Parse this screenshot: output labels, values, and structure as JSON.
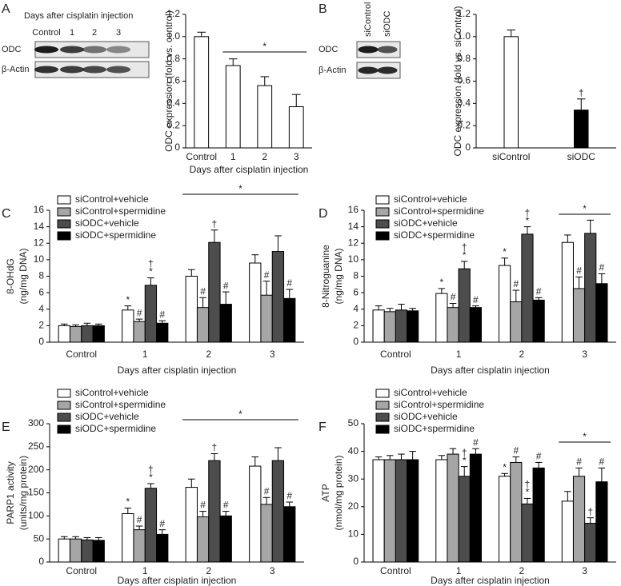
{
  "chart_data": [
    {
      "type": "bar",
      "panel": "A",
      "blot": {
        "title": "Days after cisplatin injection",
        "lanes": [
          "Control",
          "1",
          "2",
          "3"
        ],
        "rows": [
          "ODC",
          "β-Actin"
        ]
      },
      "categories": [
        "Control",
        "1",
        "2",
        "3"
      ],
      "values": [
        1.0,
        0.74,
        0.56,
        0.37
      ],
      "errors": [
        0.04,
        0.06,
        0.08,
        0.11
      ],
      "colors": [
        "#ffffff",
        "#ffffff",
        "#ffffff",
        "#ffffff"
      ],
      "ylabel": "ODC expression (fold vs. control)",
      "xlabel": "Days after cisplatin injection",
      "ylim": [
        0,
        1.2
      ],
      "yticks": [
        0,
        0.2,
        0.4,
        0.6,
        0.8,
        {
          "value": 1,
          "label": "1.0"
        },
        1.2
      ],
      "bracket": {
        "from": 1,
        "to": 3,
        "label": "*"
      }
    },
    {
      "type": "bar",
      "panel": "B",
      "blot": {
        "lanes": [
          "siControl",
          "siODC"
        ],
        "rows": [
          "ODC",
          "β-Actin"
        ]
      },
      "categories": [
        "siControl",
        "siODC"
      ],
      "values": [
        1.0,
        0.34
      ],
      "errors": [
        0.06,
        0.1
      ],
      "colors": [
        "#ffffff",
        "#000000"
      ],
      "markers": [
        null,
        [
          "†"
        ]
      ],
      "ylabel": "ODC expression (fold vs. siControl)",
      "ylim": [
        0,
        1.2
      ],
      "yticks": [
        0,
        0.2,
        0.4,
        0.6,
        0.8,
        {
          "value": 1,
          "label": "1.0"
        },
        1.2
      ]
    },
    {
      "type": "grouped-bar",
      "panel": "C",
      "categories": [
        "Control",
        "1",
        "2",
        "3"
      ],
      "ylabel": [
        "8-OHdG",
        "(ng/mg DNA)"
      ],
      "xlabel": "Days after cisplatin injection",
      "ylim": [
        0,
        16
      ],
      "yticks": [
        0,
        2,
        4,
        6,
        8,
        10,
        12,
        14,
        16
      ],
      "bracket": {
        "from": 2,
        "to": 3,
        "label": "*"
      },
      "series": [
        {
          "name": "siControl+vehicle",
          "color": "#ffffff",
          "values": [
            2.0,
            3.9,
            8.0,
            9.6
          ],
          "errors": [
            0.2,
            0.5,
            0.8,
            1.0
          ],
          "markers": [
            null,
            [
              "*"
            ],
            null,
            null
          ]
        },
        {
          "name": "siControl+spermidine",
          "color": "#a6a6a6",
          "values": [
            1.9,
            2.5,
            4.2,
            5.7
          ],
          "errors": [
            0.2,
            0.3,
            1.2,
            1.7
          ],
          "markers": [
            null,
            [
              "#"
            ],
            [
              "#"
            ],
            [
              "#"
            ]
          ]
        },
        {
          "name": "siODC+vehicle",
          "color": "#4d4d4d",
          "values": [
            2.0,
            6.9,
            12.1,
            11.0
          ],
          "errors": [
            0.3,
            0.9,
            1.5,
            1.9
          ],
          "markers": [
            null,
            [
              "†",
              "*"
            ],
            [
              "†"
            ],
            null
          ]
        },
        {
          "name": "siODC+spermidine",
          "color": "#000000",
          "values": [
            2.0,
            2.3,
            4.6,
            5.3
          ],
          "errors": [
            0.2,
            0.3,
            1.5,
            1.1
          ],
          "markers": [
            null,
            [
              "#"
            ],
            [
              "#"
            ],
            [
              "#"
            ]
          ]
        }
      ]
    },
    {
      "type": "grouped-bar",
      "panel": "D",
      "categories": [
        "Control",
        "1",
        "2",
        "3"
      ],
      "ylabel": [
        "8-Nitroguanine",
        "(ng/mg DNA)"
      ],
      "xlabel": "Days after cisplatin injection",
      "ylim": [
        0,
        16
      ],
      "yticks": [
        0,
        2,
        4,
        6,
        8,
        10,
        12,
        14,
        16
      ],
      "bracket": {
        "from": 3,
        "to": 3,
        "label": "*"
      },
      "series": [
        {
          "name": "siControl+vehicle",
          "color": "#ffffff",
          "values": [
            3.9,
            5.9,
            9.3,
            12.1
          ],
          "errors": [
            0.5,
            0.6,
            0.9,
            0.9
          ],
          "markers": [
            null,
            [
              "*"
            ],
            [
              "*"
            ],
            null
          ]
        },
        {
          "name": "siControl+spermidine",
          "color": "#a6a6a6",
          "values": [
            3.7,
            4.2,
            4.9,
            6.5
          ],
          "errors": [
            0.4,
            0.5,
            1.4,
            1.4
          ],
          "markers": [
            null,
            [
              "#"
            ],
            [
              "#"
            ],
            [
              "#"
            ]
          ]
        },
        {
          "name": "siODC+vehicle",
          "color": "#4d4d4d",
          "values": [
            3.9,
            8.9,
            13.1,
            13.2
          ],
          "errors": [
            0.7,
            0.9,
            0.9,
            1.6
          ],
          "markers": [
            null,
            [
              "†",
              "*"
            ],
            [
              "†",
              "*"
            ],
            null
          ]
        },
        {
          "name": "siODC+spermidine",
          "color": "#000000",
          "values": [
            3.8,
            4.2,
            5.1,
            7.1
          ],
          "errors": [
            0.3,
            0.2,
            0.3,
            1.2
          ],
          "markers": [
            null,
            [
              "#"
            ],
            [
              "#"
            ],
            [
              "#"
            ]
          ]
        }
      ]
    },
    {
      "type": "grouped-bar",
      "panel": "E",
      "categories": [
        "Control",
        "1",
        "2",
        "3"
      ],
      "ylabel": [
        "PARP1 activity",
        "(units/mg protein)"
      ],
      "xlabel": "Days after cisplatin injection",
      "ylim": [
        0,
        300
      ],
      "yticks": [
        0,
        50,
        100,
        150,
        200,
        250,
        300
      ],
      "bracket": {
        "from": 2,
        "to": 3,
        "label": "*"
      },
      "series": [
        {
          "name": "siControl+vehicle",
          "color": "#ffffff",
          "values": [
            50,
            105,
            162,
            208
          ],
          "errors": [
            5,
            12,
            18,
            20
          ],
          "markers": [
            null,
            [
              "*"
            ],
            null,
            null
          ]
        },
        {
          "name": "siControl+spermidine",
          "color": "#a6a6a6",
          "values": [
            50,
            70,
            98,
            125
          ],
          "errors": [
            5,
            8,
            12,
            15
          ],
          "markers": [
            null,
            [
              "#"
            ],
            [
              "#"
            ],
            [
              "#"
            ]
          ]
        },
        {
          "name": "siODC+vehicle",
          "color": "#4d4d4d",
          "values": [
            48,
            160,
            220,
            220
          ],
          "errors": [
            5,
            10,
            15,
            28
          ],
          "markers": [
            null,
            [
              "†",
              "*"
            ],
            [
              "†"
            ],
            null
          ]
        },
        {
          "name": "siODC+spermidine",
          "color": "#000000",
          "values": [
            47,
            60,
            100,
            120
          ],
          "errors": [
            6,
            10,
            10,
            10
          ],
          "markers": [
            null,
            [
              "#"
            ],
            [
              "#"
            ],
            [
              "#"
            ]
          ]
        }
      ]
    },
    {
      "type": "grouped-bar",
      "panel": "F",
      "categories": [
        "Control",
        "1",
        "2",
        "3"
      ],
      "ylabel": [
        "ATP",
        "(nmol/mg protein)"
      ],
      "xlabel": "Days after cisplatin injection",
      "ylim": [
        0,
        50
      ],
      "yticks": [
        0,
        10,
        20,
        30,
        40,
        50
      ],
      "bracket": {
        "from": 3,
        "to": 3,
        "label": "*"
      },
      "series": [
        {
          "name": "siControl+vehicle",
          "color": "#ffffff",
          "values": [
            37,
            37,
            31,
            22
          ],
          "errors": [
            1,
            1.5,
            1,
            3.5
          ],
          "markers": [
            null,
            null,
            [
              "*"
            ],
            null
          ]
        },
        {
          "name": "siControl+spermidine",
          "color": "#a6a6a6",
          "values": [
            37,
            39,
            36,
            31
          ],
          "errors": [
            1.5,
            2,
            2,
            3
          ],
          "markers": [
            null,
            null,
            [
              "#"
            ],
            [
              "#"
            ]
          ]
        },
        {
          "name": "siODC+vehicle",
          "color": "#4d4d4d",
          "values": [
            37,
            31,
            21,
            14
          ],
          "errors": [
            2,
            3.5,
            2,
            2
          ],
          "markers": [
            null,
            [
              "†",
              "*"
            ],
            [
              "†",
              "*"
            ],
            [
              "†"
            ]
          ]
        },
        {
          "name": "siODC+spermidine",
          "color": "#000000",
          "values": [
            37,
            39,
            34,
            29
          ],
          "errors": [
            3,
            2,
            2,
            5
          ],
          "markers": [
            null,
            [
              "#"
            ],
            [
              "#"
            ],
            [
              "#"
            ]
          ]
        }
      ]
    }
  ]
}
